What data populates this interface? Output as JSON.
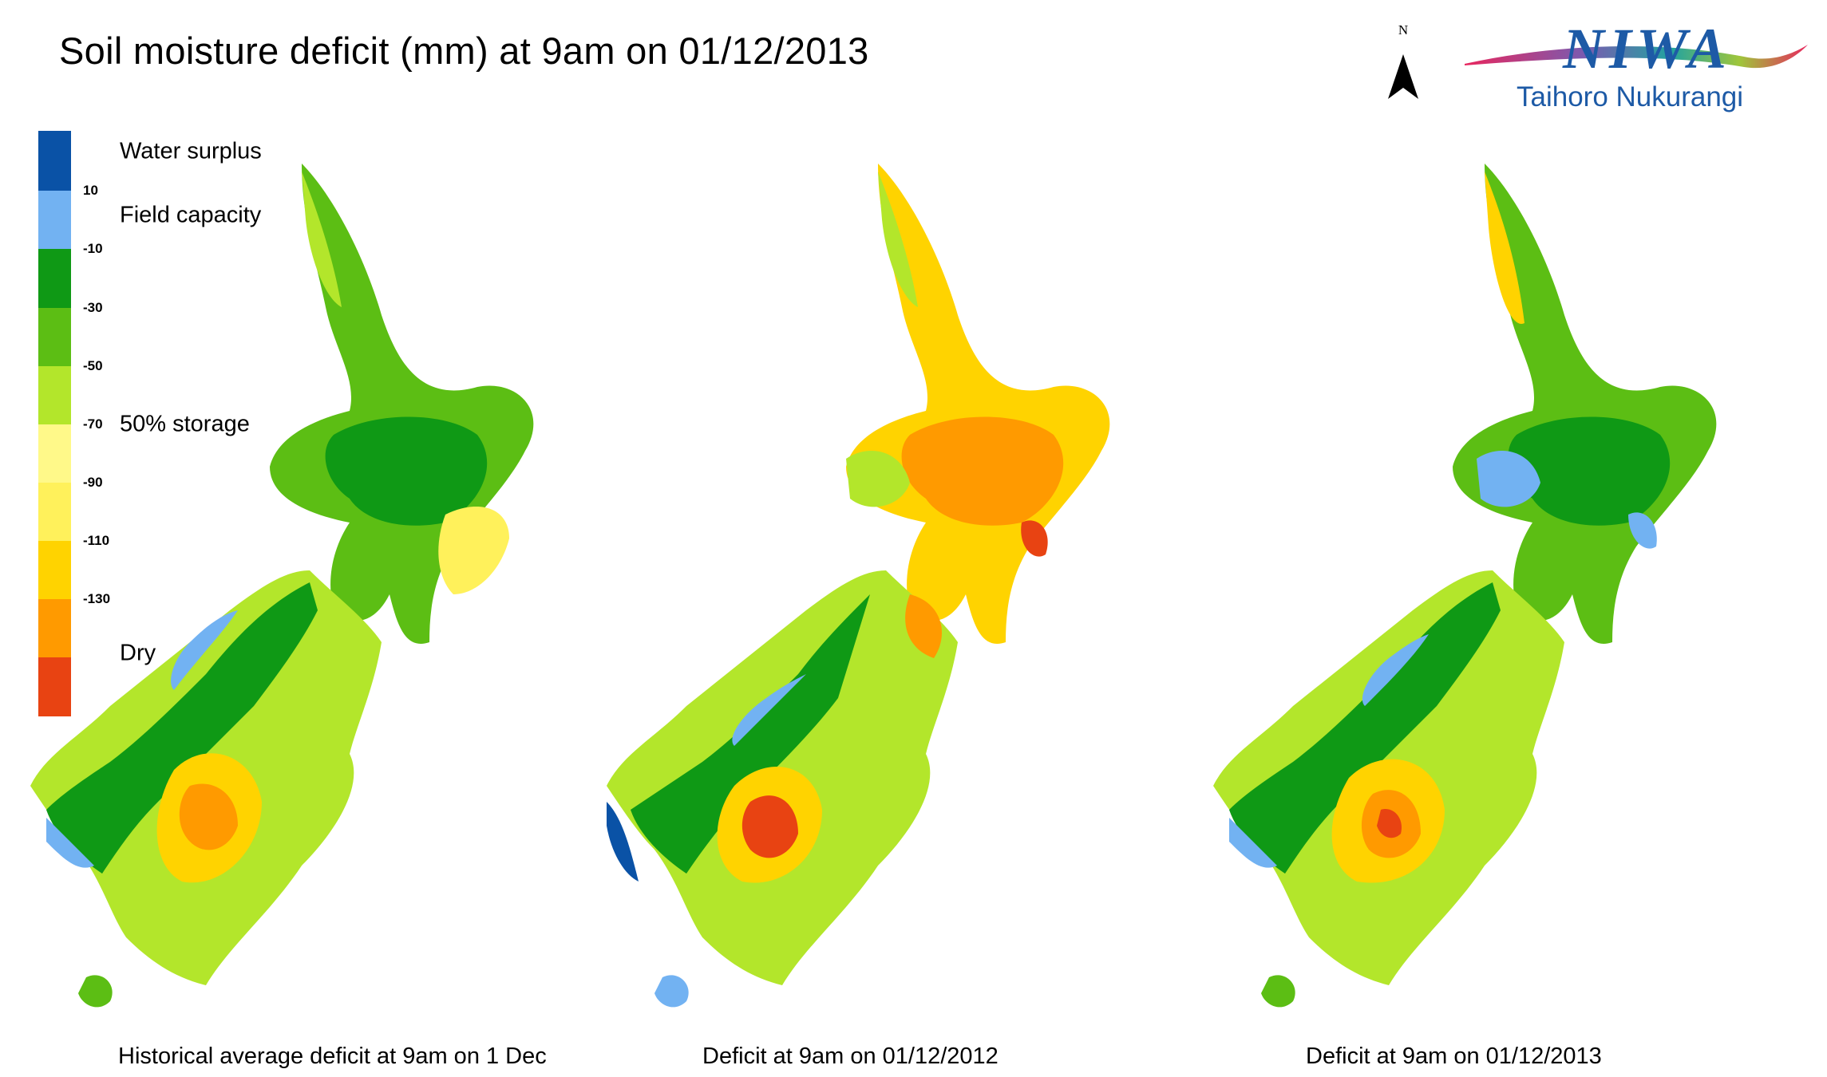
{
  "header": {
    "title": "Soil moisture deficit (mm) at  9am on 01/12/2013"
  },
  "north_arrow": {
    "label": "N"
  },
  "logo": {
    "name": "NIWA",
    "tagline": "Taihoro Nukurangi"
  },
  "legend": {
    "colors": [
      "#0a52a6",
      "#72b2f2",
      "#0f9915",
      "#5cbe14",
      "#b3e62b",
      "#fff989",
      "#fff15b",
      "#ffd300",
      "#ff9a00",
      "#e84312"
    ],
    "ticks": [
      "10",
      "-10",
      "-30",
      "-50",
      "-70",
      "-90",
      "-110",
      "-130"
    ],
    "labels": {
      "water_surplus": "Water surplus",
      "field_capacity": "Field capacity",
      "half_storage": "50% storage",
      "dry": "Dry"
    }
  },
  "panels": [
    {
      "caption": "Historical average deficit at  9am on 1 Dec"
    },
    {
      "caption": "Deficit at  9am on 01/12/2012"
    },
    {
      "caption": "Deficit at  9am on 01/12/2013"
    }
  ]
}
